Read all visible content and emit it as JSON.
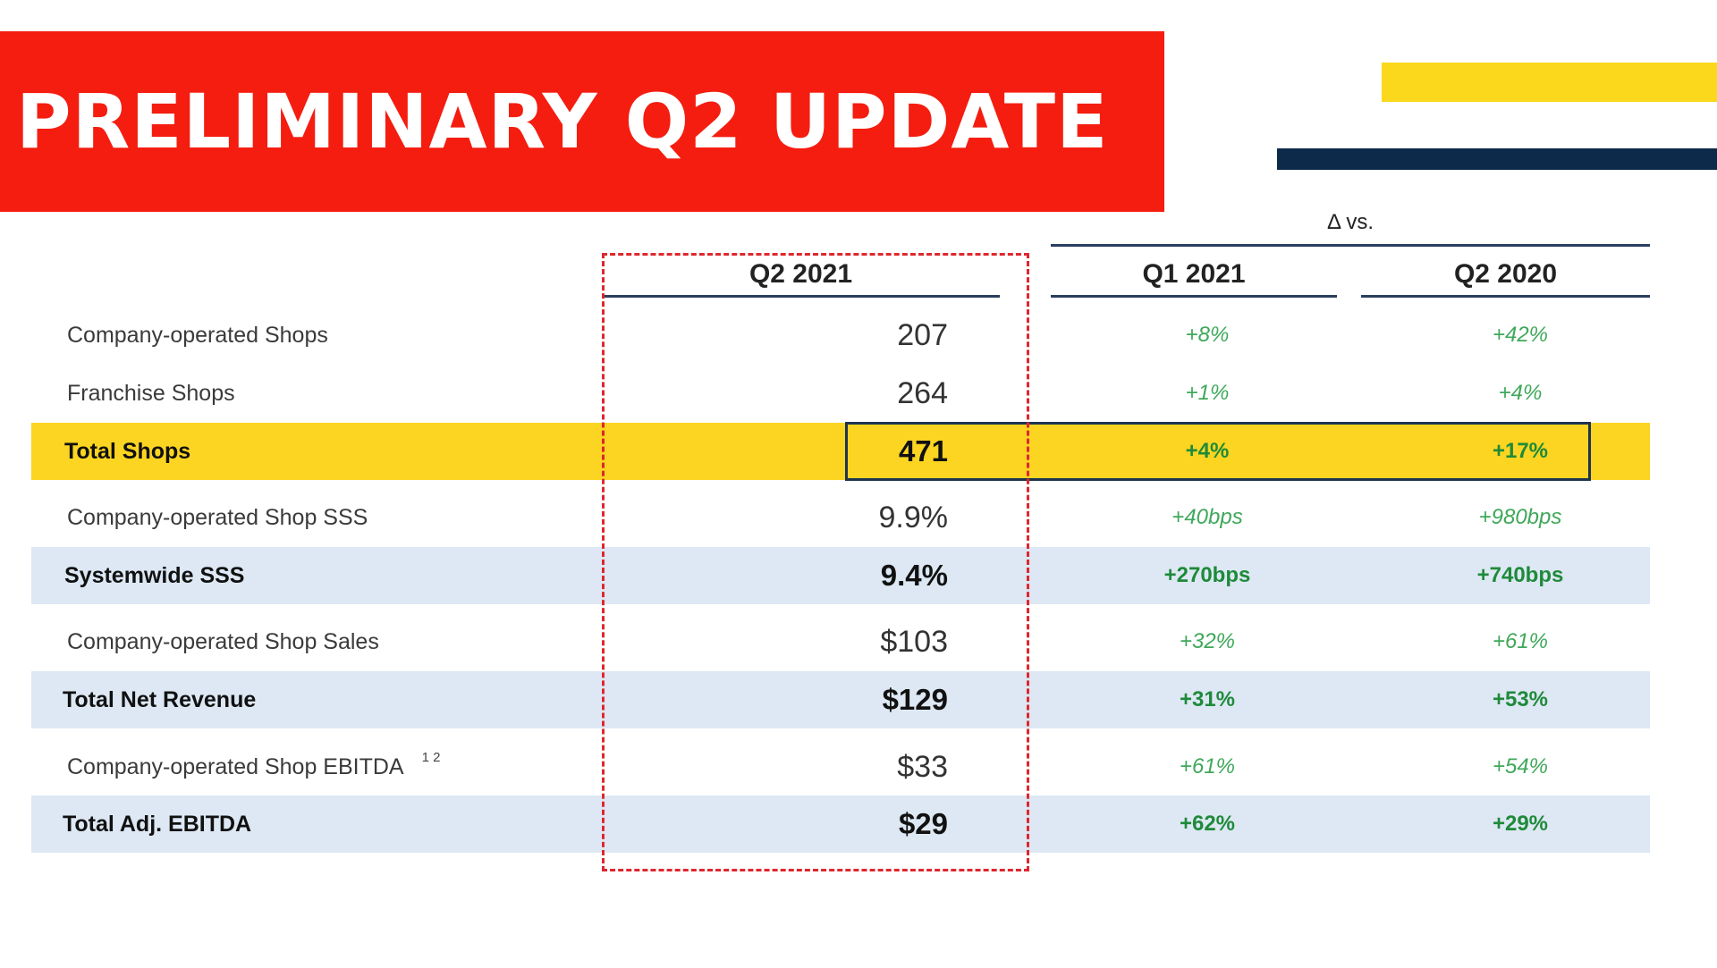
{
  "header": {
    "title": "PRELIMINARY Q2 UPDATE",
    "banner_color": "#f41d10",
    "accent_yellow": "#fbd81b",
    "accent_navy": "#0e2a4a"
  },
  "table": {
    "delta_header": "Δ vs.",
    "columns": [
      "Q2 2021",
      "Q1 2021",
      "Q2 2020"
    ],
    "rows": [
      {
        "label": "Company-operated Shops",
        "value": "207",
        "vs_q1_2021": "+8%",
        "vs_q2_2020": "+42%",
        "emphasis": false
      },
      {
        "label": "Franchise Shops",
        "value": "264",
        "vs_q1_2021": "+1%",
        "vs_q2_2020": "+4%",
        "emphasis": false
      },
      {
        "label": "Total Shops",
        "value": "471",
        "vs_q1_2021": "+4%",
        "vs_q2_2020": "+17%",
        "emphasis": true
      },
      {
        "label": "Company-operated Shop SSS",
        "value": "9.9%",
        "vs_q1_2021": "+40bps",
        "vs_q2_2020": "+980bps",
        "emphasis": false
      },
      {
        "label": "Systemwide SSS",
        "value": "9.4%",
        "vs_q1_2021": "+270bps",
        "vs_q2_2020": "+740bps",
        "emphasis": true
      },
      {
        "label": "Company-operated Shop Sales",
        "value": "$103",
        "vs_q1_2021": "+32%",
        "vs_q2_2020": "+61%",
        "emphasis": false
      },
      {
        "label": "Total Net Revenue",
        "value": "$129",
        "vs_q1_2021": "+31%",
        "vs_q2_2020": "+53%",
        "emphasis": true
      },
      {
        "label": "Company-operated Shop EBITDA",
        "footnote": "1 2",
        "value": "$33",
        "vs_q1_2021": "+61%",
        "vs_q2_2020": "+54%",
        "emphasis": false
      },
      {
        "label": "Total Adj. EBITDA",
        "value": "$29",
        "vs_q1_2021": "+62%",
        "vs_q2_2020": "+29%",
        "emphasis": true
      }
    ]
  }
}
